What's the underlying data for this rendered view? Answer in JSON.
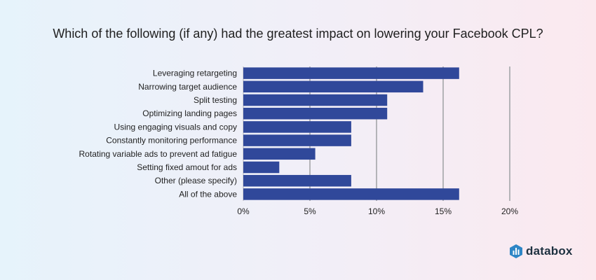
{
  "chart_data": {
    "type": "bar",
    "orientation": "horizontal",
    "title": "Which of the following (if any) had the greatest impact on lowering your Facebook CPL?",
    "categories": [
      "Leveraging retargeting",
      "Narrowing target audience",
      "Split testing",
      "Optimizing landing pages",
      "Using engaging visuals and copy",
      "Constantly monitoring performance",
      "Rotating variable ads to prevent ad fatigue",
      "Setting fixed amout for ads",
      "Other (please specify)",
      "All of the above"
    ],
    "values": [
      16.2,
      13.5,
      10.8,
      10.8,
      8.1,
      8.1,
      5.4,
      2.7,
      8.1,
      16.2
    ],
    "xlim": [
      0,
      20
    ],
    "xticks": [
      0,
      5,
      10,
      15,
      20
    ],
    "xtick_labels": [
      "0%",
      "5%",
      "10%",
      "15%",
      "20%"
    ],
    "bar_color": "#30489a",
    "grid_color": "#b4b4b8",
    "xlabel": "",
    "ylabel": ""
  },
  "brand": {
    "name": "databox"
  }
}
